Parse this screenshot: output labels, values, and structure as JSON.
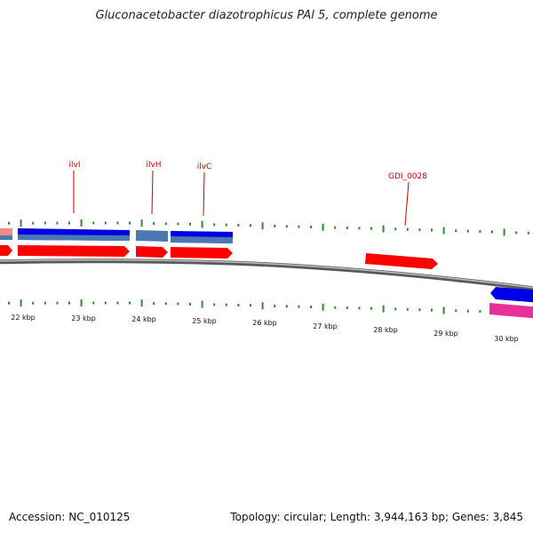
{
  "title": "Gluconacetobacter diazotrophicus PAl 5, complete genome",
  "footer": {
    "accession": "Accession: NC_010125",
    "summary": "Topology: circular; Length: 3,944,163 bp; Genes: 3,845"
  },
  "colors": {
    "backbone": "#8a8a8a",
    "gene_forward": "#ff0000",
    "gene_forward_faded": "#f08080",
    "gene_reverse": "#0000e6",
    "gene_reverse_alt": "#4a78b0",
    "gene_pink": "#e8309a",
    "label": "#cc0000",
    "tick": "#2e8b2e"
  },
  "gene_labels": [
    "ilvI",
    "ilvH",
    "ilvC",
    "GDI_0028"
  ],
  "scale_labels": [
    "22 kbp",
    "23 kbp",
    "24 kbp",
    "25 kbp",
    "26 kbp",
    "27 kbp",
    "28 kbp",
    "29 kbp",
    "30 kbp"
  ]
}
